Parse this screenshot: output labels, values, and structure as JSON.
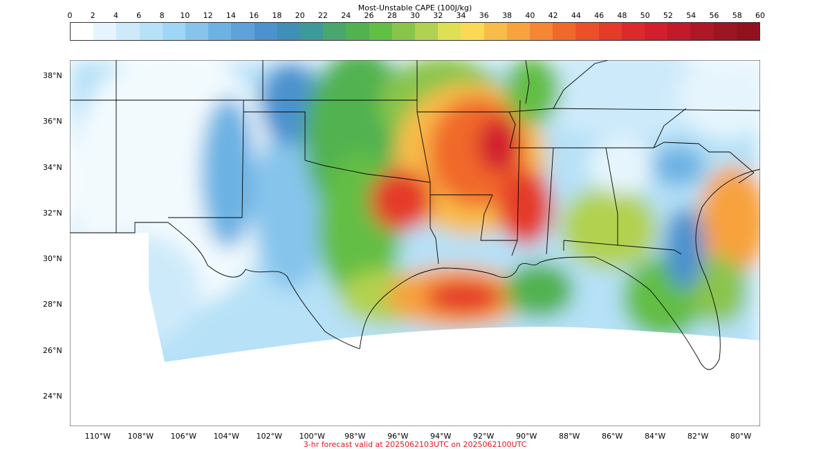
{
  "colorbar": {
    "title": "Most-Unstable CAPE (100J/kg)",
    "ticks": [
      "0",
      "2",
      "4",
      "6",
      "8",
      "10",
      "12",
      "14",
      "16",
      "18",
      "20",
      "22",
      "24",
      "26",
      "28",
      "30",
      "32",
      "34",
      "36",
      "38",
      "40",
      "42",
      "44",
      "46",
      "48",
      "50",
      "52",
      "54",
      "56",
      "58",
      "60"
    ],
    "colors": [
      "#ffffff",
      "#e6f5fd",
      "#cdeafa",
      "#b6e1f7",
      "#a0d6f5",
      "#86c4ec",
      "#6cb2e3",
      "#5fa1d9",
      "#4b92cf",
      "#3f8fb6",
      "#3e9a99",
      "#49a76e",
      "#51b24f",
      "#63be45",
      "#8ac54b",
      "#b2d150",
      "#dde055",
      "#fbd954",
      "#f8bc48",
      "#f7a23e",
      "#f58634",
      "#f1692a",
      "#ec5028",
      "#e53b29",
      "#dc292b",
      "#d21e2d",
      "#c11a29",
      "#ae1826",
      "#9b1522",
      "#8f121e"
    ],
    "range": [
      0,
      60
    ]
  },
  "map": {
    "extent": {
      "lon_min": -111.3,
      "lon_max": -79.1,
      "lat_min": 22.7,
      "lat_max": 38.7
    },
    "lat_labels": [
      {
        "lat": 38,
        "text": "38°N"
      },
      {
        "lat": 36,
        "text": "36°N"
      },
      {
        "lat": 34,
        "text": "34°N"
      },
      {
        "lat": 32,
        "text": "32°N"
      },
      {
        "lat": 30,
        "text": "30°N"
      },
      {
        "lat": 28,
        "text": "28°N"
      },
      {
        "lat": 26,
        "text": "26°N"
      },
      {
        "lat": 24,
        "text": "24°N"
      }
    ],
    "lon_labels": [
      {
        "lon": -110,
        "text": "110°W"
      },
      {
        "lon": -108,
        "text": "108°W"
      },
      {
        "lon": -106,
        "text": "106°W"
      },
      {
        "lon": -104,
        "text": "104°W"
      },
      {
        "lon": -102,
        "text": "102°W"
      },
      {
        "lon": -100,
        "text": "100°W"
      },
      {
        "lon": -98,
        "text": "98°W"
      },
      {
        "lon": -96,
        "text": "96°W"
      },
      {
        "lon": -94,
        "text": "94°W"
      },
      {
        "lon": -92,
        "text": "92°W"
      },
      {
        "lon": -90,
        "text": "90°W"
      },
      {
        "lon": -88,
        "text": "88°W"
      },
      {
        "lon": -86,
        "text": "86°W"
      },
      {
        "lon": -84,
        "text": "84°W"
      },
      {
        "lon": -82,
        "text": "82°W"
      },
      {
        "lon": -80,
        "text": "80°W"
      }
    ]
  },
  "footer": {
    "text": "3-hr forecast valid at 2025062103UTC on 2025062100UTC",
    "color": "#e8141c"
  }
}
